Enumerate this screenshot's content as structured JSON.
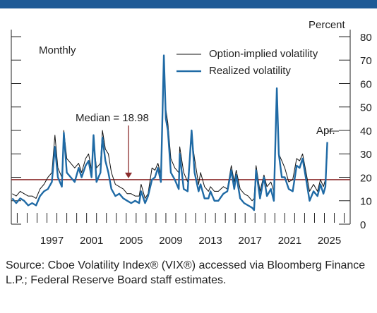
{
  "chart_data": {
    "type": "line",
    "y_label": "Percent",
    "frequency_label": "Monthly",
    "end_label": "Apr.",
    "median": {
      "value": 18.98,
      "label": "Median = 18.98",
      "color": "#8b2c2c"
    },
    "x": [
      1993.5,
      1993.9,
      1994.3,
      1994.7,
      1995.1,
      1995.5,
      1995.9,
      1996.3,
      1996.7,
      1997.1,
      1997.5,
      1997.8,
      1998.1,
      1998.5,
      1998.7,
      1999.0,
      1999.4,
      1999.8,
      2000.2,
      2000.5,
      2000.9,
      2001.2,
      2001.5,
      2001.7,
      2002.0,
      2002.4,
      2002.6,
      2002.9,
      2003.2,
      2003.5,
      2003.9,
      2004.3,
      2004.7,
      2005.1,
      2005.5,
      2005.9,
      2006.3,
      2006.5,
      2006.9,
      2007.2,
      2007.6,
      2007.9,
      2008.2,
      2008.5,
      2008.8,
      2009.0,
      2009.2,
      2009.5,
      2009.9,
      2010.3,
      2010.4,
      2010.8,
      2011.2,
      2011.6,
      2011.9,
      2012.3,
      2012.5,
      2012.9,
      2013.3,
      2013.5,
      2013.9,
      2014.3,
      2014.8,
      2015.2,
      2015.6,
      2015.9,
      2016.1,
      2016.5,
      2016.9,
      2017.3,
      2017.7,
      2017.9,
      2018.1,
      2018.5,
      2018.9,
      2019.2,
      2019.6,
      2019.9,
      2020.2,
      2020.4,
      2020.7,
      2021.0,
      2021.4,
      2021.8,
      2022.2,
      2022.5,
      2022.8,
      2023.2,
      2023.5,
      2023.9,
      2024.3,
      2024.6,
      2024.9,
      2025.1,
      2025.29
    ],
    "series": [
      {
        "name": "Option-implied volatility",
        "color": "#111111",
        "width": 1,
        "values": [
          13,
          12,
          14,
          13,
          12,
          12,
          11,
          15,
          17,
          20,
          22,
          38,
          24,
          20,
          40,
          28,
          26,
          24,
          26,
          22,
          28,
          30,
          23,
          35,
          24,
          26,
          40,
          32,
          30,
          22,
          17,
          16,
          15,
          13,
          13,
          12,
          12,
          17,
          11,
          13,
          24,
          23,
          26,
          21,
          70,
          49,
          43,
          28,
          24,
          22,
          33,
          22,
          18,
          37,
          28,
          17,
          22,
          16,
          14,
          16,
          14,
          14,
          16,
          15,
          25,
          18,
          23,
          15,
          13,
          12,
          10,
          11,
          25,
          14,
          21,
          16,
          18,
          14,
          57,
          30,
          27,
          24,
          18,
          19,
          28,
          27,
          30,
          21,
          14,
          17,
          14,
          19,
          16,
          19,
          30
        ]
      },
      {
        "name": "Realized volatility",
        "color": "#1f6aa5",
        "width": 2.4,
        "values": [
          11,
          9,
          11,
          10,
          8,
          9,
          8,
          12,
          14,
          15,
          18,
          33,
          20,
          16,
          39,
          22,
          20,
          18,
          24,
          20,
          25,
          27,
          20,
          38,
          18,
          22,
          37,
          27,
          22,
          15,
          12,
          13,
          11,
          10,
          9,
          10,
          9,
          14,
          9,
          12,
          19,
          20,
          24,
          18,
          72,
          45,
          40,
          22,
          19,
          15,
          30,
          15,
          14,
          40,
          22,
          14,
          17,
          11,
          11,
          14,
          10,
          10,
          13,
          14,
          23,
          15,
          21,
          11,
          9,
          8,
          7,
          6,
          23,
          11,
          20,
          12,
          15,
          10,
          58,
          30,
          20,
          20,
          15,
          14,
          25,
          24,
          28,
          18,
          10,
          14,
          12,
          17,
          13,
          16,
          35
        ]
      }
    ],
    "xlim": [
      1993.4,
      2027.6
    ],
    "xticks": [
      {
        "value": 1997.5,
        "label": "1997"
      },
      {
        "value": 2001.5,
        "label": "2001"
      },
      {
        "value": 2005.5,
        "label": "2005"
      },
      {
        "value": 2009.5,
        "label": "2009"
      },
      {
        "value": 2013.5,
        "label": "2013"
      },
      {
        "value": 2017.5,
        "label": "2017"
      },
      {
        "value": 2021.5,
        "label": "2021"
      },
      {
        "value": 2025.5,
        "label": "2025"
      }
    ],
    "xminorticks": [
      1994,
      1995,
      1996,
      1997,
      1998,
      1999,
      2000,
      2001,
      2002,
      2003,
      2004,
      2005,
      2006,
      2007,
      2008,
      2009,
      2010,
      2011,
      2012,
      2013,
      2014,
      2015,
      2016,
      2017,
      2018,
      2019,
      2020,
      2021,
      2022,
      2023,
      2024,
      2025,
      2026,
      2027
    ],
    "ylim": [
      0,
      80
    ],
    "yticks": [
      0,
      10,
      20,
      30,
      40,
      50,
      60,
      70,
      80
    ]
  },
  "source": "Source: Cboe Volatility Index® (VIX®) accessed via Bloomberg Finance L.P.; Federal Reserve Board staff estimates."
}
